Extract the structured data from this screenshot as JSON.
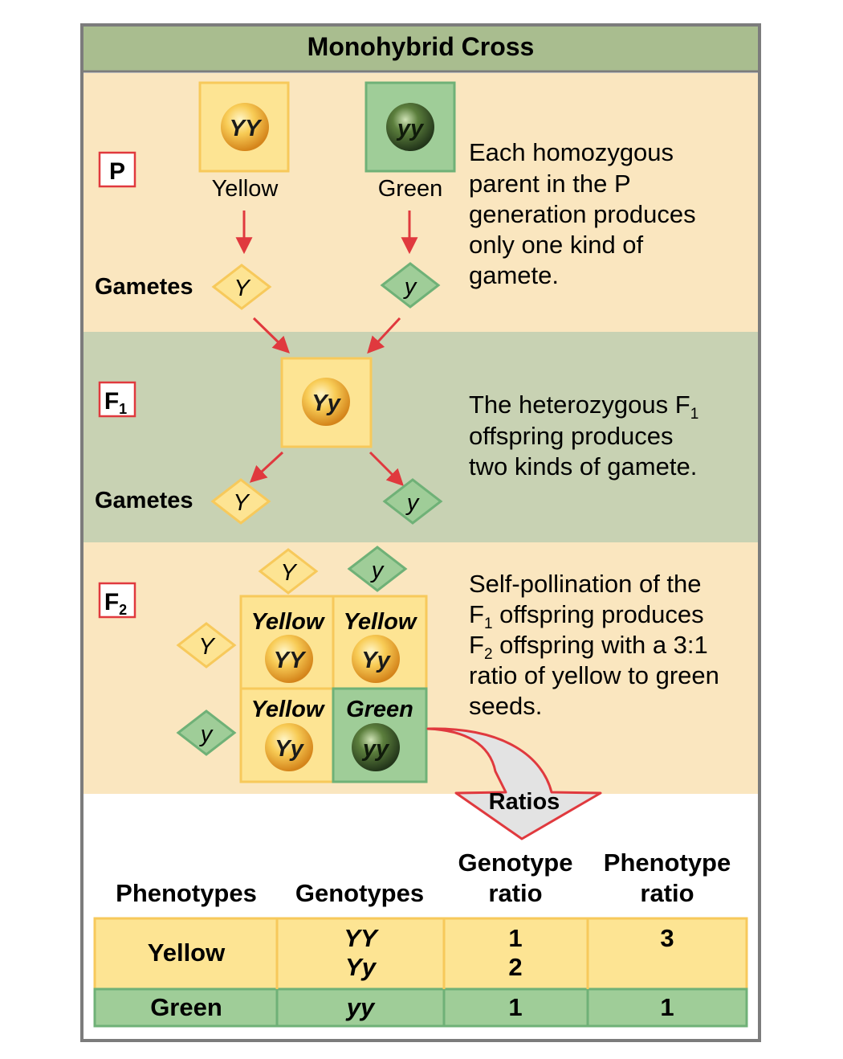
{
  "title": "Monohybrid Cross",
  "colors": {
    "header_bg": "#a9bd8f",
    "p_band": "#fae6bf",
    "f1_band": "#c8d2b3",
    "f2_band": "#fae6bf",
    "yellow_box": "#fde493",
    "yellow_border": "#f7c95b",
    "green_box": "#9fcd98",
    "green_border": "#6fb177",
    "arrow_red": "#e0393e",
    "label_box_red": "#e0393e",
    "table_yellow": "#fde493",
    "table_green": "#9fcd98"
  },
  "p_section": {
    "label": "P",
    "parent1": {
      "genotype": "YY",
      "phenotype": "Yellow"
    },
    "parent2": {
      "genotype": "yy",
      "phenotype": "Green"
    },
    "gametes_label": "Gametes",
    "gamete1": "Y",
    "gamete2": "y",
    "note_lines": [
      "Each homozygous",
      "parent in the P",
      "generation produces",
      "only one kind of",
      "gamete."
    ]
  },
  "f1_section": {
    "label_main": "F",
    "label_sub": "1",
    "offspring": "Yy",
    "gametes_label": "Gametes",
    "gamete1": "Y",
    "gamete2": "y",
    "note_line1_main": "The heterozygous F",
    "note_line1_sub": "1",
    "note_lines_rest": [
      "offspring produces",
      "two kinds of gamete."
    ]
  },
  "f2_section": {
    "label_main": "F",
    "label_sub": "2",
    "col_gametes": [
      "Y",
      "y"
    ],
    "row_gametes": [
      "Y",
      "y"
    ],
    "cells": [
      {
        "phenotype": "Yellow",
        "genotype": "YY"
      },
      {
        "phenotype": "Yellow",
        "genotype": "Yy"
      },
      {
        "phenotype": "Yellow",
        "genotype": "Yy"
      },
      {
        "phenotype": "Green",
        "genotype": "yy"
      }
    ],
    "note_line1": "Self-pollination of the",
    "note_line2_main": "F",
    "note_line2_sub": "1",
    "note_line2_rest": " offspring produces",
    "note_line3_main": "F",
    "note_line3_sub": "2",
    "note_line3_rest": " offspring with a 3:1",
    "note_line4": "ratio of yellow to green",
    "note_line5": "seeds."
  },
  "ratios": {
    "label": "Ratios",
    "headers": {
      "phenotypes": "Phenotypes",
      "genotypes": "Genotypes",
      "genotype_ratio_l1": "Genotype",
      "genotype_ratio_l2": "ratio",
      "phenotype_ratio_l1": "Phenotype",
      "phenotype_ratio_l2": "ratio"
    },
    "rows": [
      {
        "phenotype": "Yellow",
        "genotypes": [
          "YY",
          "Yy"
        ],
        "genotype_ratios": [
          "1",
          "2"
        ],
        "phenotype_ratio": "3"
      },
      {
        "phenotype": "Green",
        "genotypes": [
          "yy"
        ],
        "genotype_ratios": [
          "1"
        ],
        "phenotype_ratio": "1"
      }
    ]
  }
}
